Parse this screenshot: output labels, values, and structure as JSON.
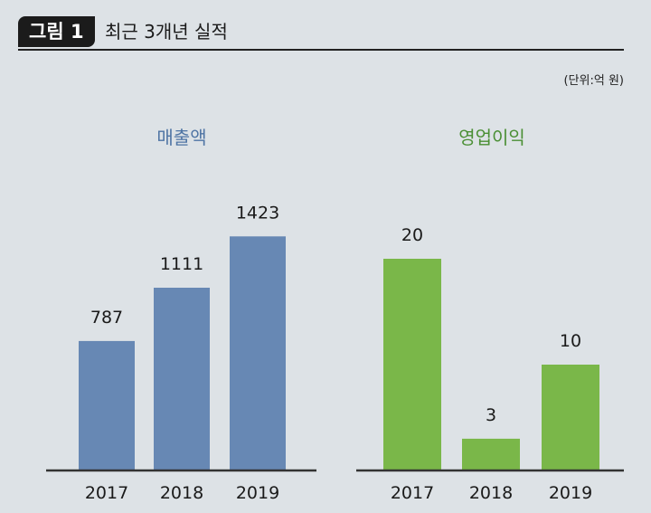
{
  "header": {
    "figure_label": "그림 1",
    "title": "최근 3개년 실적"
  },
  "unit_label": "(단위:억 원)",
  "colors": {
    "revenue": "#6788b4",
    "operating_profit": "#7ab749",
    "revenue_title": "#4e74a4",
    "profit_title": "#4a8f34"
  },
  "chart_data": [
    {
      "type": "bar",
      "title": "매출액",
      "categories": [
        "2017",
        "2018",
        "2019"
      ],
      "values": [
        787,
        1111,
        1423
      ],
      "ylim": [
        0,
        1650
      ],
      "xlabel": "",
      "ylabel": ""
    },
    {
      "type": "bar",
      "title": "영업이익",
      "categories": [
        "2017",
        "2018",
        "2019"
      ],
      "values": [
        20,
        3,
        10
      ],
      "ylim": [
        0,
        20
      ],
      "xlabel": "",
      "ylabel": ""
    }
  ]
}
